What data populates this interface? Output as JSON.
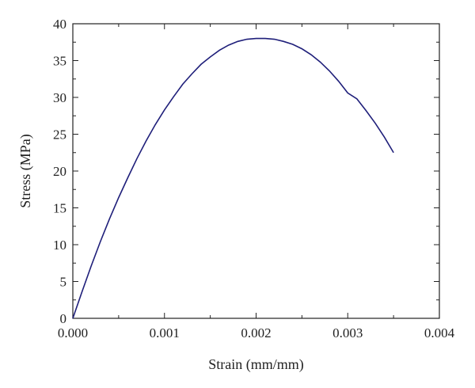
{
  "chart_data": {
    "type": "line",
    "title": "",
    "xlabel": "Strain (mm/mm)",
    "ylabel": "Stress (MPa)",
    "xlim": [
      0,
      0.004
    ],
    "ylim": [
      0,
      40
    ],
    "grid": false,
    "x_ticks": [
      0,
      0.001,
      0.002,
      0.003,
      0.004
    ],
    "x_tick_labels": [
      "0.000",
      "0.001",
      "0.002",
      "0.003",
      "0.004"
    ],
    "y_ticks": [
      0,
      5,
      10,
      15,
      20,
      25,
      30,
      35,
      40
    ],
    "y_tick_labels": [
      "0",
      "5",
      "10",
      "15",
      "20",
      "25",
      "30",
      "35",
      "40"
    ],
    "colors": {
      "line": "#1f1f7a",
      "axis": "#222222"
    },
    "series": [
      {
        "x": [
          0,
          0.0001,
          0.0002,
          0.0003,
          0.0004,
          0.0005,
          0.0006,
          0.0007,
          0.0008,
          0.0009,
          0.001,
          0.0011,
          0.0012,
          0.0013,
          0.0014,
          0.0015,
          0.0016,
          0.0017,
          0.0018,
          0.0019,
          0.002,
          0.0021,
          0.0022,
          0.0023,
          0.0024,
          0.0025,
          0.0026,
          0.0027,
          0.0028,
          0.0029,
          0.003,
          0.0031,
          0.0032,
          0.0033,
          0.0034,
          0.0035
        ],
        "y": [
          0,
          3.6,
          7.1,
          10.4,
          13.5,
          16.4,
          19.1,
          21.7,
          24.1,
          26.3,
          28.3,
          30.1,
          31.8,
          33.2,
          34.5,
          35.5,
          36.4,
          37.1,
          37.6,
          37.9,
          38.0,
          38.0,
          37.9,
          37.6,
          37.2,
          36.6,
          35.8,
          34.8,
          33.6,
          32.2,
          30.6,
          29.8,
          28.2,
          26.5,
          24.6,
          22.5
        ]
      }
    ]
  }
}
